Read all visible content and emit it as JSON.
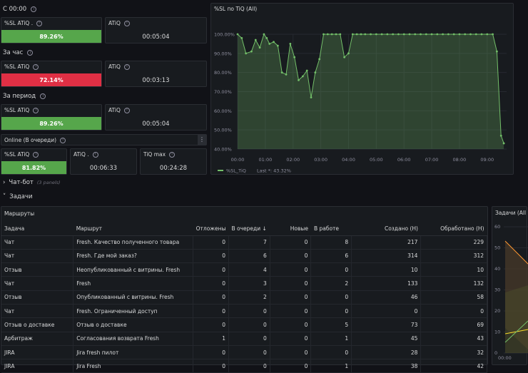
{
  "sections": {
    "now": "С 00:00",
    "hour": "За час",
    "period": "За период",
    "online": "Online (В очереди)"
  },
  "stats": {
    "now": {
      "sl_label": "%SL ATiQ .",
      "sl_value": "89.26%",
      "atiq_label": "ATiQ",
      "atiq_value": "00:05:04"
    },
    "hour": {
      "sl_label": "%SL ATiQ",
      "sl_value": "72.14%",
      "atiq_label": "ATiQ",
      "atiq_value": "00:03:13"
    },
    "period": {
      "sl_label": "%SL ATiQ",
      "sl_value": "89.26%",
      "atiq_label": "ATiQ",
      "atiq_value": "00:05:04"
    },
    "online": {
      "sl_label": "%SL ATiQ",
      "sl_value": "81.82%",
      "atiq_label": "ATiQ .",
      "atiq_value": "00:06:33",
      "tiq_label": "TiQ max",
      "tiq_value": "00:24:28"
    }
  },
  "colors": {
    "green": "#56a64b",
    "red": "#e02f44"
  },
  "chatbot_row": {
    "title": "Чат-бот",
    "count": "(3 panels)"
  },
  "tasks_row": {
    "title": "Задачи"
  },
  "menu_icon": "kebab-menu-icon",
  "chart_data": {
    "type": "area",
    "title": "%SL по TiQ (All)",
    "y_ticks": [
      "100.00%",
      "90.00%",
      "80.00%",
      "70.00%",
      "60.00%",
      "50.00%",
      "40.00%"
    ],
    "ylim": [
      40,
      100
    ],
    "x_ticks": [
      "00:00",
      "01:00",
      "02:00",
      "03:00",
      "04:00",
      "05:00",
      "06:00",
      "07:00",
      "08:00",
      "09:00"
    ],
    "xlim": [
      0,
      9.7
    ],
    "grid": true,
    "legend_placement": "bottom-left",
    "series": [
      {
        "name": "%SL_TiQ",
        "legend": "%SL_TiQ",
        "last_label": "Last *: 43.32%",
        "color": "#73bf69",
        "x": [
          0,
          0.15,
          0.3,
          0.5,
          0.65,
          0.8,
          0.95,
          1.05,
          1.15,
          1.3,
          1.45,
          1.6,
          1.75,
          1.9,
          2.05,
          2.2,
          2.35,
          2.5,
          2.65,
          2.8,
          2.95,
          3.1,
          3.25,
          3.4,
          3.55,
          3.7,
          3.85,
          4.0,
          4.15,
          4.3,
          4.45,
          4.6,
          4.8,
          5.0,
          5.2,
          5.4,
          5.6,
          5.8,
          6.0,
          6.2,
          6.4,
          6.6,
          6.8,
          7.0,
          7.2,
          7.4,
          7.6,
          7.8,
          8.0,
          8.2,
          8.4,
          8.6,
          8.8,
          9.0,
          9.2,
          9.35,
          9.5,
          9.6
        ],
        "y": [
          100,
          98,
          90,
          91,
          97,
          93,
          100,
          98,
          95,
          96,
          94,
          80,
          79,
          95,
          88,
          76,
          78,
          81,
          67,
          80,
          87,
          100,
          100,
          100,
          100,
          100,
          88,
          90,
          100,
          100,
          100,
          100,
          100,
          100,
          100,
          100,
          100,
          100,
          100,
          100,
          100,
          100,
          100,
          100,
          100,
          100,
          100,
          100,
          100,
          100,
          100,
          100,
          100,
          100,
          100,
          91,
          47,
          43
        ]
      }
    ]
  },
  "routes": {
    "title": "Маршруты",
    "sort_icon": "sort-desc-icon",
    "columns": [
      "Задача",
      "Маршрут",
      "Отложены",
      "В очереди",
      "Новые",
      "В работе",
      "Создано (Н)",
      "Обработано (Н)"
    ],
    "rows": [
      [
        "Чат",
        "Fresh. Качество полученного товара",
        "0",
        "7",
        "0",
        "8",
        "217",
        "229"
      ],
      [
        "Чат",
        "Fresh. Где мой заказ?",
        "0",
        "6",
        "0",
        "6",
        "314",
        "312"
      ],
      [
        "Отзыв",
        "Неопубликованный с витрины. Fresh",
        "0",
        "4",
        "0",
        "0",
        "10",
        "10"
      ],
      [
        "Чат",
        "Fresh",
        "0",
        "3",
        "0",
        "2",
        "133",
        "132"
      ],
      [
        "Отзыв",
        "Опубликованный с витрины. Fresh",
        "0",
        "2",
        "0",
        "0",
        "46",
        "58"
      ],
      [
        "Чат",
        "Fresh. Ограниченный доступ",
        "0",
        "0",
        "0",
        "0",
        "0",
        "0"
      ],
      [
        "Отзыв о доставке",
        "Отзыв о доставке",
        "0",
        "0",
        "0",
        "5",
        "73",
        "69"
      ],
      [
        "Арбитраж",
        "Согласования возврата Fresh",
        "1",
        "0",
        "0",
        "1",
        "45",
        "43"
      ],
      [
        "JIRA",
        "Jira fresh пилот",
        "0",
        "0",
        "0",
        "0",
        "28",
        "32"
      ],
      [
        "JIRA",
        "Jira Fresh",
        "0",
        "0",
        "0",
        "1",
        "38",
        "42"
      ]
    ]
  },
  "tasks_chart": {
    "title": "Задачи (All",
    "y_ticks": [
      "60",
      "50",
      "40",
      "30",
      "20",
      "10",
      "0"
    ],
    "x_tick": "00:00"
  }
}
